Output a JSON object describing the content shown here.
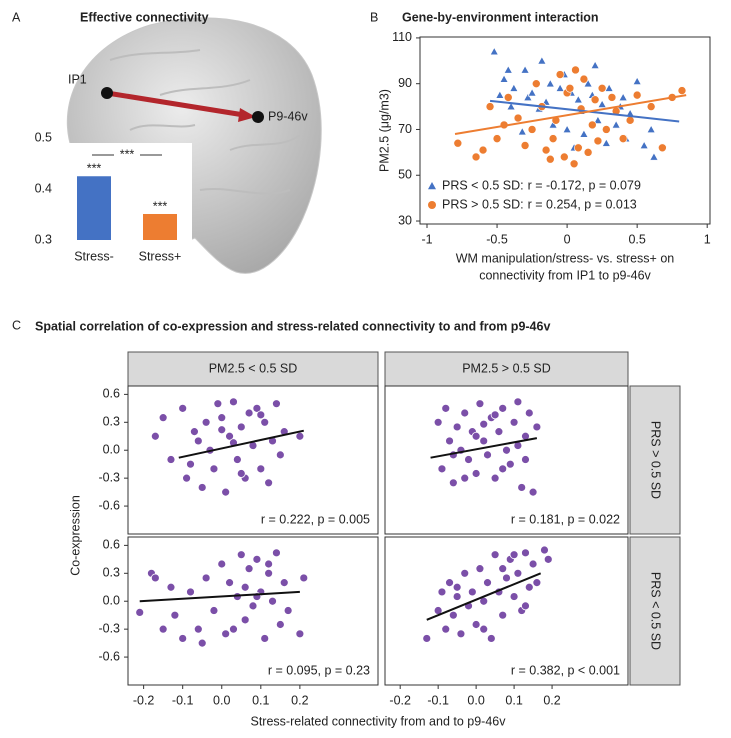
{
  "chart_data": [
    {
      "type": "bar",
      "panel": "A",
      "title": "Effective connectivity",
      "nodes": [
        "IP1",
        "P9-46v"
      ],
      "categories": [
        "Stress-",
        "Stress+"
      ],
      "values": [
        0.425,
        0.351
      ],
      "colors": [
        "#4472c4",
        "#ed7d31"
      ],
      "significance": [
        "***",
        "***"
      ],
      "bracket_label": "***",
      "ylim": [
        0.3,
        0.5
      ],
      "yticks": [
        0.3,
        0.4,
        0.5
      ]
    },
    {
      "type": "scatter",
      "panel": "B",
      "title": "Gene-by-environment interaction",
      "xlabel": [
        "WM manipulation/stress- vs. stress+ on",
        "connectivity from IP1 to p9-46v"
      ],
      "ylabel": "PM2.5 (μg/m3)",
      "xlim": [
        -1.05,
        1.02
      ],
      "ylim": [
        28.7,
        110.4
      ],
      "xticks": [
        -1,
        -0.5,
        0,
        0.5,
        1
      ],
      "yticks": [
        30,
        50,
        70,
        90,
        110
      ],
      "series": [
        {
          "name": "PRS < 0.5 SD:",
          "stats": "r = -0.172, p = 0.079",
          "color": "#4472c4",
          "marker": "triangle",
          "x": [
            -0.52,
            -0.48,
            -0.45,
            -0.4,
            -0.38,
            -0.35,
            -0.3,
            -0.28,
            -0.25,
            -0.2,
            -0.18,
            -0.15,
            -0.12,
            -0.1,
            -0.05,
            -0.02,
            0,
            0.03,
            0.05,
            0.08,
            0.1,
            0.12,
            0.15,
            0.18,
            0.2,
            0.22,
            0.25,
            0.28,
            0.3,
            0.35,
            0.38,
            0.4,
            0.42,
            0.45,
            0.5,
            0.55,
            0.6,
            0.62,
            -0.42,
            -0.32
          ],
          "values": [
            104,
            85,
            92,
            80,
            88,
            75,
            96,
            84,
            86,
            79,
            100,
            82,
            90,
            72,
            88,
            94,
            70,
            86,
            62,
            83,
            78,
            68,
            90,
            85,
            98,
            74,
            81,
            64,
            88,
            72,
            80,
            84,
            66,
            77,
            91,
            63,
            70,
            58,
            96,
            69
          ],
          "fit": {
            "x": [
              -0.55,
              0.8
            ],
            "y": [
              82.5,
              73.5
            ]
          }
        },
        {
          "name": "PRS > 0.5 SD:",
          "stats": "r = 0.254, p = 0.013",
          "color": "#ed7d31",
          "marker": "circle",
          "x": [
            -0.78,
            -0.65,
            -0.6,
            -0.55,
            -0.5,
            -0.45,
            -0.42,
            -0.35,
            -0.3,
            -0.25,
            -0.22,
            -0.18,
            -0.15,
            -0.1,
            -0.08,
            -0.05,
            -0.02,
            0,
            0.02,
            0.05,
            0.08,
            0.1,
            0.12,
            0.15,
            0.18,
            0.2,
            0.22,
            0.25,
            0.28,
            0.32,
            0.35,
            0.4,
            0.45,
            0.5,
            0.6,
            0.68,
            0.75,
            0.82,
            -0.12,
            0.06
          ],
          "values": [
            64,
            58,
            61,
            80,
            66,
            72,
            84,
            75,
            63,
            70,
            90,
            80,
            61,
            66,
            74,
            94,
            58,
            86,
            88,
            55,
            62,
            79,
            92,
            60,
            72,
            83,
            65,
            88,
            70,
            84,
            78,
            66,
            74,
            85,
            80,
            62,
            84,
            87,
            57,
            96
          ],
          "fit": {
            "x": [
              -0.8,
              0.85
            ],
            "y": [
              68,
              85
            ]
          }
        }
      ]
    },
    {
      "type": "scatter",
      "panel": "C",
      "title": "Spatial correlation of co-expression and stress-related connectivity to and from p9-46v",
      "xlabel": "Stress-related connectivity from and to p9-46v",
      "ylabel": "Co-expression",
      "xlim": [
        -0.24,
        0.4
      ],
      "ylim": [
        -0.9,
        0.69
      ],
      "xticks": [
        -0.2,
        -0.1,
        {
          "value": 0,
          "label": "0.0"
        },
        0.1,
        0.2
      ],
      "yticks": [
        0.6,
        0.3,
        {
          "value": 0,
          "label": "0.0"
        },
        -0.3,
        -0.6
      ],
      "color": "#7b4fa8",
      "col_labels": [
        "PM2.5 < 0.5 SD",
        "PM2.5 > 0.5 SD"
      ],
      "row_labels": [
        "PRS > 0.5 SD",
        "PRS < 0.5 SD"
      ],
      "facets": [
        {
          "annotation": "r = 0.222, p = 0.005",
          "x": [
            -0.17,
            -0.15,
            -0.13,
            -0.1,
            -0.09,
            -0.07,
            -0.06,
            -0.05,
            -0.04,
            -0.03,
            -0.02,
            -0.01,
            0,
            0.01,
            0.02,
            0.03,
            0.04,
            0.05,
            0.06,
            0.07,
            0.08,
            0.09,
            0.1,
            0.11,
            0.12,
            0.13,
            0.14,
            0.15,
            0.16,
            0.2,
            0.05,
            -0.08,
            0.1,
            0.0,
            0.03
          ],
          "y": [
            0.15,
            0.35,
            -0.1,
            0.45,
            -0.3,
            0.2,
            0.1,
            -0.4,
            0.3,
            0.0,
            -0.2,
            0.5,
            0.35,
            -0.45,
            0.15,
            0.52,
            -0.1,
            0.25,
            -0.3,
            0.4,
            0.05,
            0.45,
            -0.2,
            0.3,
            -0.35,
            0.1,
            0.5,
            -0.05,
            0.2,
            0.15,
            -0.25,
            -0.15,
            0.38,
            0.22,
            0.08
          ],
          "fit": {
            "x": [
              -0.11,
              0.21
            ],
            "y": [
              -0.08,
              0.21
            ]
          }
        },
        {
          "annotation": "r = 0.181, p = 0.022",
          "x": [
            -0.1,
            -0.09,
            -0.08,
            -0.07,
            -0.06,
            -0.05,
            -0.04,
            -0.03,
            -0.02,
            -0.01,
            0,
            0.01,
            0.02,
            0.03,
            0.04,
            0.05,
            0.06,
            0.07,
            0.08,
            0.09,
            0.1,
            0.11,
            0.12,
            0.13,
            0.14,
            0.15,
            0.16,
            -0.06,
            0.02,
            0.07,
            0.11,
            -0.03,
            0.0,
            0.05,
            0.13
          ],
          "y": [
            0.3,
            -0.2,
            0.45,
            0.1,
            -0.35,
            0.25,
            0.0,
            0.4,
            -0.1,
            0.2,
            -0.25,
            0.5,
            0.1,
            -0.05,
            0.35,
            -0.3,
            0.2,
            0.45,
            0.0,
            -0.15,
            0.3,
            0.52,
            -0.4,
            0.15,
            0.4,
            -0.45,
            0.25,
            -0.05,
            0.28,
            -0.2,
            0.05,
            -0.3,
            0.15,
            0.38,
            -0.1
          ],
          "fit": {
            "x": [
              -0.12,
              0.16
            ],
            "y": [
              -0.08,
              0.13
            ]
          }
        },
        {
          "annotation": "r = 0.095, p = 0.23",
          "x": [
            -0.21,
            -0.18,
            -0.17,
            -0.15,
            -0.13,
            -0.12,
            -0.1,
            -0.08,
            -0.06,
            -0.04,
            -0.02,
            0,
            0.01,
            0.02,
            0.04,
            0.05,
            0.06,
            0.07,
            0.08,
            0.09,
            0.1,
            0.11,
            0.12,
            0.13,
            0.14,
            0.15,
            0.16,
            0.17,
            0.2,
            0.21,
            0.03,
            0.09,
            0.12,
            0.06,
            -0.05
          ],
          "y": [
            -0.12,
            0.3,
            0.25,
            -0.3,
            0.15,
            -0.15,
            -0.4,
            0.1,
            -0.3,
            0.25,
            -0.1,
            0.4,
            -0.35,
            0.2,
            0.05,
            0.5,
            -0.2,
            0.35,
            -0.05,
            0.45,
            0.1,
            -0.4,
            0.3,
            0.0,
            0.52,
            -0.25,
            0.2,
            -0.1,
            -0.35,
            0.25,
            -0.3,
            0.05,
            0.4,
            0.15,
            -0.45
          ],
          "fit": {
            "x": [
              -0.21,
              0.2
            ],
            "y": [
              0.0,
              0.1
            ]
          }
        },
        {
          "annotation": "r = 0.382, p < 0.001",
          "x": [
            -0.13,
            -0.1,
            -0.09,
            -0.08,
            -0.07,
            -0.06,
            -0.05,
            -0.04,
            -0.03,
            -0.02,
            -0.01,
            0,
            0.01,
            0.02,
            0.03,
            0.04,
            0.05,
            0.06,
            0.07,
            0.08,
            0.09,
            0.1,
            0.11,
            0.12,
            0.13,
            0.14,
            0.15,
            0.16,
            0.18,
            0.19,
            -0.05,
            0.02,
            0.07,
            0.1,
            0.13
          ],
          "y": [
            -0.4,
            -0.1,
            0.1,
            -0.3,
            0.2,
            -0.15,
            0.05,
            -0.35,
            0.3,
            -0.05,
            0.1,
            -0.25,
            0.35,
            0.0,
            0.2,
            -0.4,
            0.5,
            0.1,
            -0.15,
            0.25,
            0.45,
            0.05,
            0.3,
            -0.1,
            0.52,
            0.15,
            0.4,
            0.2,
            0.55,
            0.45,
            0.15,
            -0.3,
            0.35,
            0.5,
            -0.05
          ],
          "fit": {
            "x": [
              -0.13,
              0.17
            ],
            "y": [
              -0.2,
              0.3
            ]
          }
        }
      ]
    }
  ]
}
